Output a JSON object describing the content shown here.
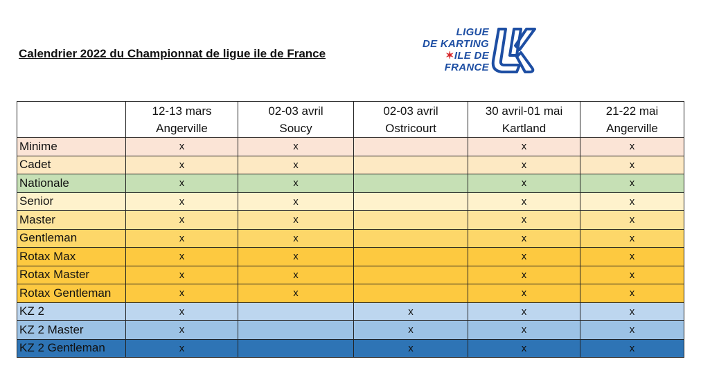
{
  "title": "Calendrier 2022 du Championnat de ligue ile de France",
  "logo": {
    "line1": "LIGUE",
    "line2": "DE KARTING",
    "line3_star": "✶",
    "line3": "ILE DE",
    "line4": "FRANCE",
    "mark_letters": "LK",
    "brand_color": "#1d4ea3",
    "star_color": "#d6262b"
  },
  "table": {
    "events": [
      {
        "dates": "12-13 mars",
        "place": "Angerville"
      },
      {
        "dates": "02-03 avril",
        "place": "Soucy"
      },
      {
        "dates": "02-03 avril",
        "place": "Ostricourt"
      },
      {
        "dates": "30 avril-01 mai",
        "place": "Kartland"
      },
      {
        "dates": "21-22 mai",
        "place": "Angerville"
      }
    ],
    "rows": [
      {
        "category": "Minime",
        "color": "#fbe4d6",
        "marks": [
          "x",
          "x",
          "",
          "x",
          "x"
        ]
      },
      {
        "category": "Cadet",
        "color": "#fde9c3",
        "marks": [
          "x",
          "x",
          "",
          "x",
          "x"
        ]
      },
      {
        "category": "Nationale",
        "color": "#c6e0b5",
        "marks": [
          "x",
          "x",
          "",
          "x",
          "x"
        ]
      },
      {
        "category": "Senior",
        "color": "#fef2cc",
        "marks": [
          "x",
          "x",
          "",
          "x",
          "x"
        ]
      },
      {
        "category": "Master",
        "color": "#fde49b",
        "marks": [
          "x",
          "x",
          "",
          "x",
          "x"
        ]
      },
      {
        "category": "Gentleman",
        "color": "#fdd769",
        "marks": [
          "x",
          "x",
          "",
          "x",
          "x"
        ]
      },
      {
        "category": "Rotax Max",
        "color": "#fdc940",
        "marks": [
          "x",
          "x",
          "",
          "x",
          "x"
        ]
      },
      {
        "category": "Rotax Master",
        "color": "#fdc940",
        "marks": [
          "x",
          "x",
          "",
          "x",
          "x"
        ]
      },
      {
        "category": "Rotax Gentleman",
        "color": "#fdc940",
        "marks": [
          "x",
          "x",
          "",
          "x",
          "x"
        ]
      },
      {
        "category": "KZ 2",
        "color": "#bdd6ef",
        "marks": [
          "x",
          "",
          "x",
          "x",
          "x"
        ]
      },
      {
        "category": "KZ 2 Master",
        "color": "#9cc2e5",
        "marks": [
          "x",
          "",
          "x",
          "x",
          "x"
        ]
      },
      {
        "category": "KZ 2 Gentleman",
        "color": "#2e74b5",
        "marks": [
          "x",
          "",
          "x",
          "x",
          "x"
        ]
      }
    ]
  }
}
